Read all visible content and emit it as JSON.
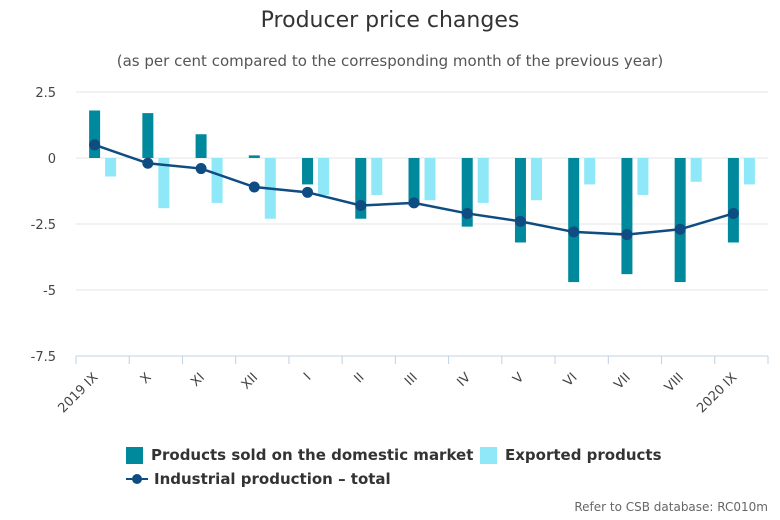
{
  "title": "Producer price changes",
  "subtitle": "(as per cent compared to the corresponding month of the previous year)",
  "source_note": "Refer to CSB database: RC010m",
  "colors": {
    "domestic": "#00899c",
    "exported": "#8ee8f7",
    "total": "#0f4c81",
    "grid": "#e6e6e6",
    "axis": "#c0d0e0"
  },
  "chart_data": {
    "type": "bar",
    "categories": [
      "2019 IX",
      "X",
      "XI",
      "XII",
      "I",
      "II",
      "III",
      "IV",
      "V",
      "VI",
      "VII",
      "VIII",
      "2020 IX"
    ],
    "ylim": [
      -7.5,
      2.5
    ],
    "yticks": [
      2.5,
      0,
      -2.5,
      -5,
      -7.5
    ],
    "ytick_labels": [
      "2.5",
      "0",
      "-2.5",
      "-5",
      "-7.5"
    ],
    "grid": true,
    "legend_position": "bottom",
    "series": [
      {
        "name": "Products sold on the domestic market",
        "type": "bar",
        "values": [
          1.8,
          1.7,
          0.9,
          0.1,
          -1.0,
          -2.3,
          -1.8,
          -2.6,
          -3.2,
          -4.7,
          -4.4,
          -4.7,
          -3.2
        ]
      },
      {
        "name": "Exported products",
        "type": "bar",
        "values": [
          -0.7,
          -1.9,
          -1.7,
          -2.3,
          -1.4,
          -1.4,
          -1.6,
          -1.7,
          -1.6,
          -1.0,
          -1.4,
          -0.9,
          -1.0
        ]
      },
      {
        "name": "Industrial production – total",
        "type": "line",
        "values": [
          0.5,
          -0.2,
          -0.4,
          -1.1,
          -1.3,
          -1.8,
          -1.7,
          -2.1,
          -2.4,
          -2.8,
          -2.9,
          -2.7,
          -2.1
        ]
      }
    ]
  }
}
